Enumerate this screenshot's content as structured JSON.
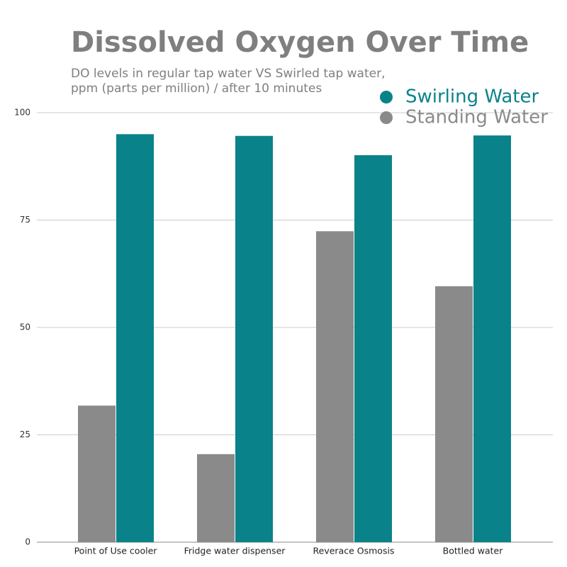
{
  "chart_data": {
    "type": "bar",
    "title": "Dissolved Oxygen Over Time",
    "subtitle": "DO levels in regular tap water VS Swirled tap water,",
    "subtitle2": "ppm (parts per million) / after 10 minutes",
    "categories": [
      "Point of Use cooler",
      "Fridge water dispenser",
      "Reverace Osmosis",
      "Bottled water"
    ],
    "series": [
      {
        "name": "Swirling Water",
        "color": "#0a828a",
        "values": [
          95.0,
          94.6,
          90.1,
          94.7
        ]
      },
      {
        "name": "Standing Water",
        "color": "#8a8a8a",
        "values": [
          31.8,
          20.5,
          72.4,
          59.6
        ]
      }
    ],
    "ylim": [
      0,
      100
    ],
    "yticks": [
      0,
      25,
      50,
      75,
      100
    ],
    "grid": true,
    "legend": "top-right"
  }
}
